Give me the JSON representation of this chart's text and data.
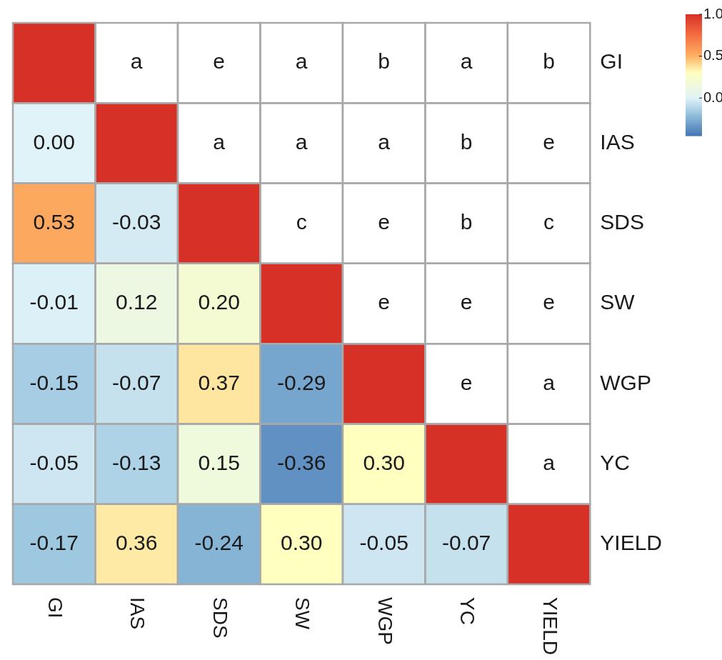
{
  "chart_data": {
    "type": "heatmap",
    "categories": [
      "GI",
      "IAS",
      "SDS",
      "SW",
      "WGP",
      "YC",
      "YIELD"
    ],
    "y_categories": [
      "GI",
      "IAS",
      "SDS",
      "SW",
      "WGP",
      "YC",
      "YIELD"
    ],
    "cells": [
      [
        1,
        null,
        null,
        null,
        null,
        null,
        null
      ],
      [
        0.0,
        1,
        null,
        null,
        null,
        null,
        null
      ],
      [
        0.53,
        -0.03,
        1,
        null,
        null,
        null,
        null
      ],
      [
        -0.01,
        0.12,
        0.2,
        1,
        null,
        null,
        null
      ],
      [
        -0.15,
        -0.07,
        0.37,
        -0.29,
        1,
        null,
        null
      ],
      [
        -0.05,
        -0.13,
        0.15,
        -0.36,
        0.3,
        1,
        null
      ],
      [
        -0.17,
        0.36,
        -0.24,
        0.3,
        -0.05,
        -0.07,
        1
      ]
    ],
    "cell_labels": [
      [
        null,
        "a",
        "e",
        "a",
        "b",
        "a",
        "b"
      ],
      [
        "0.00",
        null,
        "a",
        "a",
        "a",
        "b",
        "e"
      ],
      [
        "0.53",
        "-0.03",
        null,
        "c",
        "e",
        "b",
        "c"
      ],
      [
        "-0.01",
        "0.12",
        "0.20",
        null,
        "e",
        "e",
        "e"
      ],
      [
        "-0.15",
        "-0.07",
        "0.37",
        "-0.29",
        null,
        "e",
        "a"
      ],
      [
        "-0.05",
        "-0.13",
        "0.15",
        "-0.36",
        "0.30",
        null,
        "a"
      ],
      [
        "-0.17",
        "0.36",
        "-0.24",
        "0.30",
        "-0.05",
        "-0.07",
        null
      ]
    ],
    "clim": [
      -0.45,
      1.0
    ],
    "cticks": [
      {
        "value": 1.0,
        "label": "1.0"
      },
      {
        "value": 0.5,
        "label": "0.5"
      },
      {
        "value": 0.0,
        "label": "0.0"
      }
    ]
  }
}
